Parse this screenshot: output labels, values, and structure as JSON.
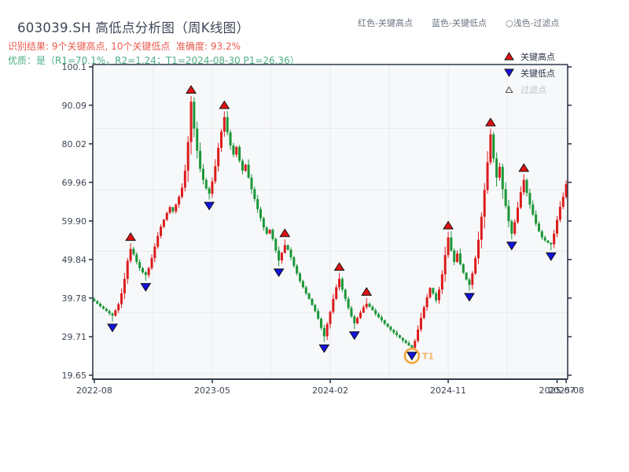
{
  "header": {
    "title": "603039.SH 高低点分析图（周K线图）",
    "result_line": "识别结果: 9个关键高点, 10个关键低点  准确度: 93.2%",
    "quality_line": "优质：是（R1=70.1%，R2=1.24；T1=2024-08-30 P1=26.36）",
    "top_legend": [
      {
        "label": "红色-关键高点"
      },
      {
        "label": "蓝色-关键低点"
      },
      {
        "label": "○浅色-过滤点"
      }
    ]
  },
  "legend": {
    "items": [
      {
        "label": "关键高点",
        "marker": "red-up-triangle"
      },
      {
        "label": "关键低点",
        "marker": "blue-down-triangle"
      },
      {
        "label": "过滤点",
        "marker": "light-up-triangle"
      }
    ]
  },
  "chart_data": {
    "type": "candlestick",
    "timeframe": "weekly",
    "symbol": "603039.SH",
    "title": "603039.SH 高低点分析图（周K线图）",
    "y_ticks": [
      "100.1",
      "90.09",
      "80.02",
      "69.96",
      "59.90",
      "49.84",
      "39.78",
      "29.71",
      "19.65"
    ],
    "ylim": [
      18.6,
      100.7
    ],
    "x_ticks": [
      {
        "label": "2022-08",
        "index": 0
      },
      {
        "label": "2023-05",
        "index": 39
      },
      {
        "label": "2024-02",
        "index": 78
      },
      {
        "label": "2024-11",
        "index": 117
      },
      {
        "label": "2025-07",
        "index": 153
      },
      {
        "label": "2025-08",
        "index": 156
      }
    ],
    "first_open": 39.5,
    "closes": [
      39.0,
      38.3,
      37.6,
      37.0,
      36.4,
      35.8,
      35.2,
      36.6,
      38.2,
      41.0,
      44.8,
      49.5,
      52.6,
      51.2,
      49.2,
      47.6,
      46.5,
      45.8,
      47.6,
      50.2,
      53.2,
      56.0,
      58.4,
      60.2,
      62.0,
      63.5,
      62.4,
      64.2,
      66.2,
      68.6,
      73.0,
      80.5,
      91.0,
      84.0,
      78.2,
      73.5,
      70.6,
      68.4,
      67.0,
      70.2,
      74.2,
      79.0,
      83.2,
      87.0,
      83.0,
      79.6,
      77.2,
      79.2,
      75.6,
      73.0,
      74.6,
      71.2,
      68.2,
      65.6,
      63.0,
      60.6,
      58.2,
      56.6,
      57.6,
      55.2,
      52.2,
      49.6,
      51.6,
      53.6,
      52.4,
      50.4,
      48.2,
      46.2,
      44.2,
      42.6,
      41.0,
      39.6,
      38.0,
      36.4,
      34.4,
      32.0,
      29.8,
      33.0,
      36.2,
      39.6,
      42.6,
      44.8,
      42.0,
      39.6,
      37.2,
      35.0,
      33.2,
      34.6,
      36.0,
      37.4,
      38.3,
      37.5,
      36.6,
      35.6,
      34.8,
      34.0,
      33.1,
      32.3,
      31.5,
      30.8,
      30.1,
      29.4,
      28.7,
      28.1,
      27.4,
      26.8,
      28.6,
      31.6,
      34.6,
      37.4,
      40.0,
      42.4,
      41.0,
      39.2,
      42.0,
      46.0,
      51.0,
      55.6,
      52.2,
      49.2,
      51.4,
      48.6,
      46.4,
      44.6,
      43.2,
      46.2,
      50.2,
      55.0,
      61.0,
      68.0,
      75.2,
      82.5,
      76.2,
      71.2,
      74.0,
      68.2,
      63.8,
      59.8,
      56.6,
      59.6,
      63.4,
      67.4,
      70.6,
      67.2,
      64.2,
      61.6,
      59.2,
      57.2,
      55.6,
      54.8,
      54.2,
      53.8,
      56.6,
      60.2,
      63.6,
      66.2,
      69.5
    ],
    "key_highs": [
      12,
      32,
      43,
      63,
      81,
      90,
      117,
      131,
      142
    ],
    "key_lows": [
      6,
      17,
      38,
      61,
      76,
      86,
      105,
      124,
      138,
      151
    ],
    "filtered_points": [],
    "t1_annotation": {
      "index": 105,
      "label": "T1",
      "date": "2024-08-30",
      "price": 26.36
    },
    "colors": {
      "up": "#dd1b1b",
      "down": "#1b9637",
      "key_high": "#e21212",
      "key_low": "#1212e0",
      "filtered_fill": "#f6ebe7",
      "t1_ring": "#f2a83c",
      "t1_text": "#f2b469",
      "spine": "#2f3b4a",
      "grid": "#e8eaed",
      "plot_bg": "#f7f8fa",
      "tick_label": "#3c4654"
    }
  }
}
